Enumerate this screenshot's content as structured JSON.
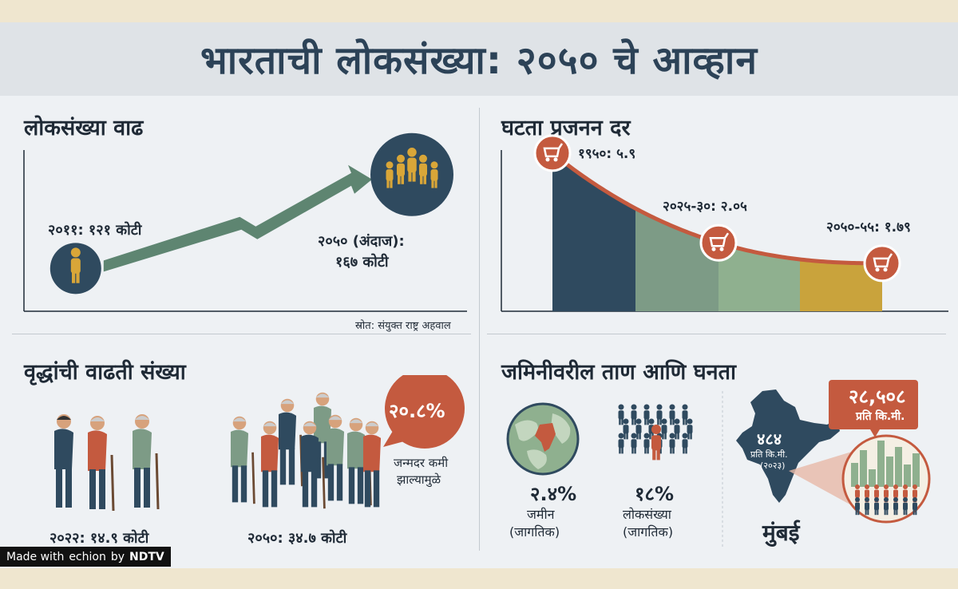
{
  "title": "भारताची लोकसंख्या: २०५० चे आव्हान",
  "colors": {
    "navy": "#2f4a5f",
    "sage": "#7d9b86",
    "mustard": "#c9a33c",
    "rust": "#c45a3f",
    "title": "#2c4257"
  },
  "panel_growth": {
    "title": "लोकसंख्या वाढ",
    "label_2011": "२०११: १२१ कोटी",
    "label_2050_line1": "२०५० (अंदाज):",
    "label_2050_line2": "१६७ कोटी",
    "source": "स्रोत: संयुक्त राष्ट्र अहवाल",
    "icons": [
      "person-icon",
      "crowd-icon",
      "trend-arrow-icon"
    ]
  },
  "panel_fertility": {
    "title": "घटता प्रजनन दर",
    "icons": [
      "baby-stroller-icon"
    ]
  },
  "panel_elderly": {
    "title": "वृद्धांची वाढती संख्या",
    "label_2022": "२०२२: १४.९ कोटी",
    "label_2050": "२०५०: ३४.७ कोटी",
    "bubble_value": "२०.८%",
    "bubble_note_line1": "जन्मदर कमी",
    "bubble_note_line2": "झाल्यामुळे",
    "icons": [
      "elderly-people-icon",
      "speech-bubble-icon"
    ]
  },
  "panel_land": {
    "title": "जमिनीवरील ताण आणि घनता",
    "land_value": "२.४%",
    "land_line1": "जमीन",
    "land_line2": "(जागतिक)",
    "pop_value": "१८%",
    "pop_line1": "लोकसंख्या",
    "pop_line2": "(जागतिक)",
    "india_density": "४८४",
    "india_density_unit": "प्रति कि.मी.",
    "india_density_year": "(२०२३)",
    "mumbai_density": "२८,५०८",
    "mumbai_density_unit": "प्रति कि.मी.",
    "city": "मुंबई",
    "icons": [
      "globe-icon",
      "crowd-icon",
      "india-map-icon",
      "city-skyline-icon"
    ]
  },
  "watermark": {
    "made_with": "Made with",
    "brand": "echion",
    "by": "by",
    "publisher": "NDTV"
  },
  "chart_data": [
    {
      "type": "line",
      "title": "लोकसंख्या वाढ",
      "x": [
        2011,
        2050
      ],
      "y": [
        121,
        167
      ],
      "labels": [
        "२०११: १२१ कोटी",
        "२०५० (अंदाज): १६७ कोटी"
      ],
      "unit": "कोटी"
    },
    {
      "type": "area",
      "title": "घटता प्रजनन दर",
      "categories": [
        "1950",
        "2025-30",
        "2050-55"
      ],
      "values": [
        5.9,
        2.05,
        1.79
      ],
      "labels": [
        "१९५०: ५.९",
        "२०२५-३०: २.०५",
        "२०५०-५५: १.७९"
      ]
    },
    {
      "type": "bar",
      "title": "वृद्धांची वाढती संख्या",
      "categories": [
        "2022",
        "2050"
      ],
      "values": [
        14.9,
        34.7
      ],
      "unit": "कोटी",
      "annotation": "२०.८%"
    },
    {
      "type": "bar",
      "title": "जमिनीवरील ताण आणि घनता",
      "categories": [
        "जमीन (जागतिक)",
        "लोकसंख्या (जागतिक)"
      ],
      "values": [
        2.4,
        18
      ],
      "unit": "%",
      "density": {
        "india": 484,
        "mumbai": 28508
      }
    }
  ]
}
